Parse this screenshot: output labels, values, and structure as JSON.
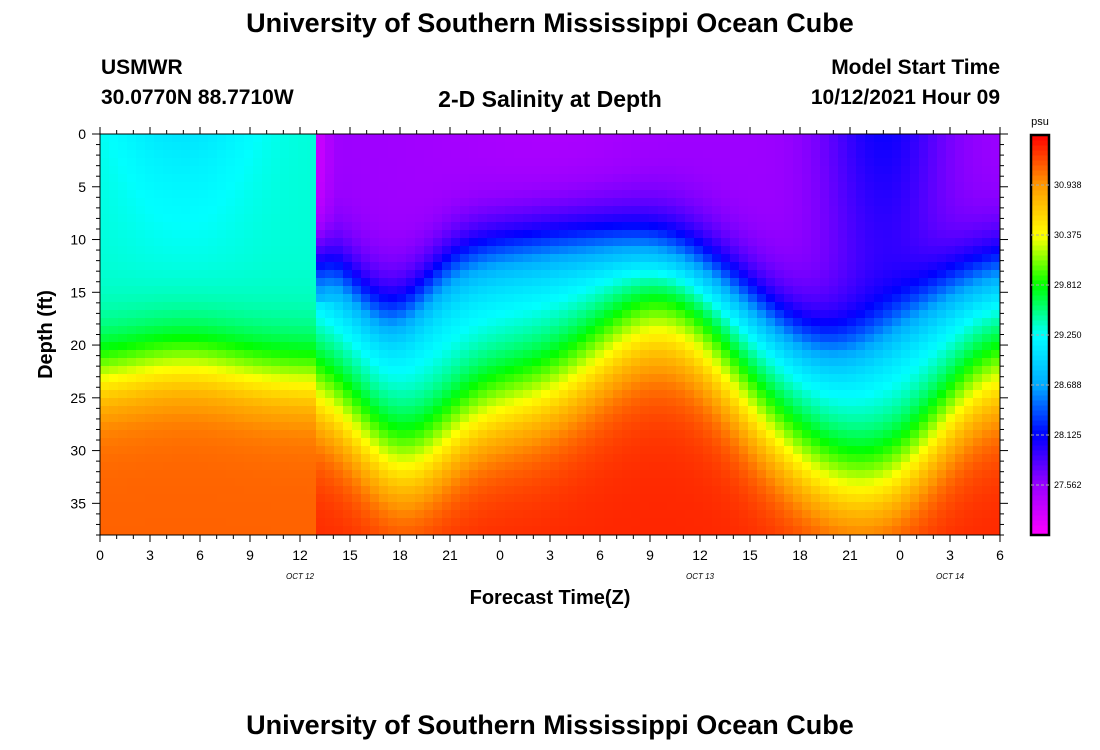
{
  "page": {
    "title_top": "University of Southern Mississippi Ocean Cube",
    "title_bottom": "University of Southern Mississippi Ocean Cube",
    "station": "USMWR",
    "coords": "30.0770N  88.7710W",
    "plot_title": "2-D Salinity at Depth",
    "model_label": "Model Start Time",
    "model_time": "10/12/2021 Hour 09"
  },
  "chart_data": {
    "type": "heatmap",
    "title": "2-D Salinity at Depth",
    "xlabel": "Forecast Time(Z)",
    "ylabel": "Depth (ft)",
    "x_hours_range": [
      0,
      54
    ],
    "y_depth_range_ft": [
      0,
      38
    ],
    "x_tick_labels": [
      "0",
      "3",
      "6",
      "9",
      "12",
      "15",
      "18",
      "21",
      "0",
      "3",
      "6",
      "9",
      "12",
      "15",
      "18",
      "21",
      "0",
      "3",
      "6"
    ],
    "y_tick_labels": [
      "0",
      "5",
      "10",
      "15",
      "20",
      "25",
      "30",
      "35"
    ],
    "y_tick_values": [
      0,
      5,
      10,
      15,
      20,
      25,
      30,
      35
    ],
    "date_labels": [
      {
        "text": "OCT 12",
        "hour": 12
      },
      {
        "text": "OCT 13",
        "hour": 36
      },
      {
        "text": "OCT 14",
        "hour": 51
      }
    ],
    "colorbar": {
      "unit": "psu",
      "min": 27.0,
      "max": 31.5,
      "ticks": [
        "30.938",
        "30.375",
        "29.812",
        "29.250",
        "28.688",
        "28.125",
        "27.562"
      ],
      "tick_values": [
        30.938,
        30.375,
        29.812,
        29.25,
        28.688,
        28.125,
        27.562
      ],
      "colors": [
        "#ff00ff",
        "#9900ff",
        "#0000ff",
        "#00aaff",
        "#00ffff",
        "#00ff00",
        "#ffff00",
        "#ff9900",
        "#ff0000"
      ]
    },
    "grid": false
  }
}
